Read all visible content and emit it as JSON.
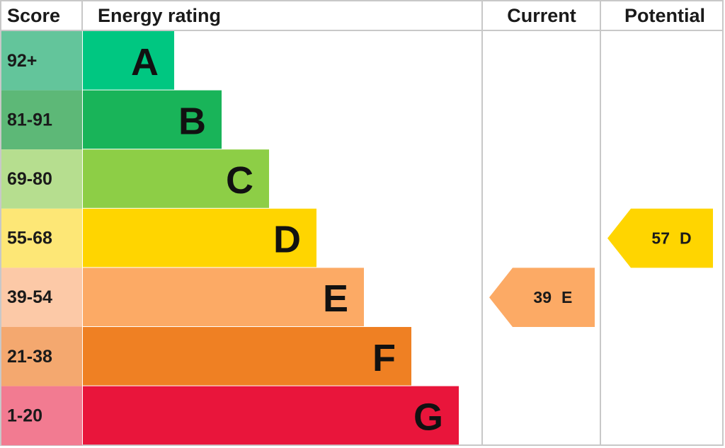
{
  "header": {
    "score": "Score",
    "rating": "Energy rating",
    "current": "Current",
    "potential": "Potential"
  },
  "rows": [
    {
      "score": "92+",
      "band": "A",
      "score_color": "#63c59b",
      "color": "#00c781"
    },
    {
      "score": "81-91",
      "band": "B",
      "score_color": "#5db877",
      "color": "#19b459"
    },
    {
      "score": "69-80",
      "band": "C",
      "score_color": "#b6de8f",
      "color": "#8dce46"
    },
    {
      "score": "55-68",
      "band": "D",
      "score_color": "#fde776",
      "color": "#ffd500"
    },
    {
      "score": "39-54",
      "band": "E",
      "score_color": "#fcc9a7",
      "color": "#fcaa65"
    },
    {
      "score": "21-38",
      "band": "F",
      "score_color": "#f4a86f",
      "color": "#ef8023"
    },
    {
      "score": "1-20",
      "band": "G",
      "score_color": "#f27b91",
      "color": "#e9153b"
    }
  ],
  "current": {
    "score": 39,
    "band": "E",
    "color": "#fcaa65"
  },
  "potential": {
    "score": 57,
    "band": "D",
    "color": "#ffd500"
  }
}
